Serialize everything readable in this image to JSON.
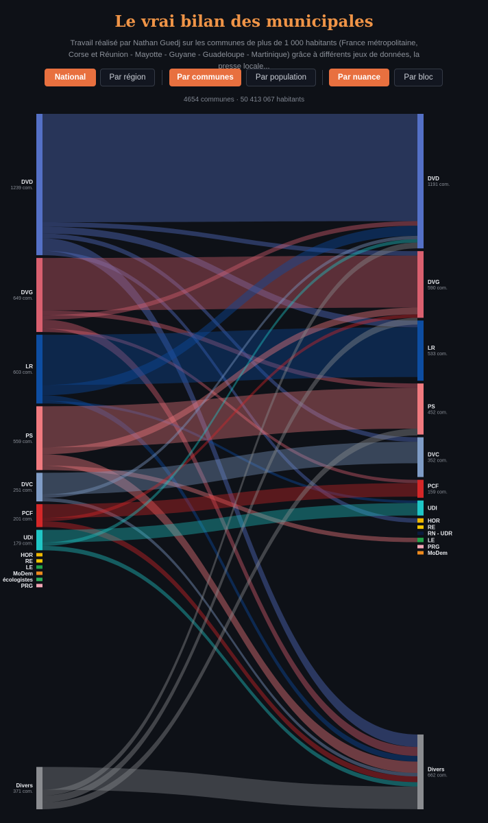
{
  "header": {
    "title": "Le vrai bilan des municipales",
    "subtitle": "Travail réalisé par Nathan Guedj sur les communes de plus de 1 000 habitants (France métropolitaine, Corse et Réunion - Mayotte - Guyane - Guadeloupe - Martinique) grâce à différents jeux de données, la presse locale..."
  },
  "filters": {
    "national": "National",
    "par_region": "Par région",
    "par_communes": "Par communes",
    "par_population": "Par population",
    "par_nuance": "Par nuance",
    "par_bloc": "Par bloc",
    "active": [
      "National",
      "Par communes",
      "Par nuance"
    ]
  },
  "stats": "4654 communes · 50 413 067 habitants",
  "chart_data": {
    "type": "sankey",
    "unit": "com.",
    "colors": {
      "DVD": "#5470c6",
      "DVG": "#d9606f",
      "LR": "#0d4da1",
      "PS": "#f07a7f",
      "DVC": "#7f9cc6",
      "PCF": "#d42728",
      "UDI": "#1fc6c6",
      "HOR": "#f0b800",
      "RE": "#f5c400",
      "LE": "#22a34a",
      "MoDem": "#ee8a1e",
      "écologistes": "#2fb05a",
      "PRG": "#f2a6b5",
      "RN - UDR": "#0a1b3d",
      "Divers": "#8a8c90"
    },
    "left_nodes": [
      {
        "name": "DVD",
        "count": 1239
      },
      {
        "name": "DVG",
        "count": 649
      },
      {
        "name": "LR",
        "count": 603
      },
      {
        "name": "PS",
        "count": 559
      },
      {
        "name": "DVC",
        "count": 251
      },
      {
        "name": "PCF",
        "count": 201
      },
      {
        "name": "UDI",
        "count": 179
      },
      {
        "name": "HOR",
        "count": null
      },
      {
        "name": "RE",
        "count": null
      },
      {
        "name": "LE",
        "count": null
      },
      {
        "name": "MoDem",
        "count": null
      },
      {
        "name": "écologistes",
        "count": null
      },
      {
        "name": "PRG",
        "count": null
      },
      {
        "name": "Divers",
        "count": 371
      }
    ],
    "right_nodes": [
      {
        "name": "DVD",
        "count": 1191
      },
      {
        "name": "DVG",
        "count": 590
      },
      {
        "name": "LR",
        "count": 533
      },
      {
        "name": "PS",
        "count": 452
      },
      {
        "name": "DVC",
        "count": 352
      },
      {
        "name": "PCF",
        "count": 159
      },
      {
        "name": "UDI",
        "count": null
      },
      {
        "name": "HOR",
        "count": null
      },
      {
        "name": "RE",
        "count": null
      },
      {
        "name": "RN - UDR",
        "count": null
      },
      {
        "name": "LE",
        "count": null
      },
      {
        "name": "PRG",
        "count": null
      },
      {
        "name": "MoDem",
        "count": null
      },
      {
        "name": "Divers",
        "count": 662
      }
    ],
    "flows": [
      {
        "from": "DVD",
        "to": "DVD",
        "value": 950
      },
      {
        "from": "DVD",
        "to": "DVG",
        "value": 40
      },
      {
        "from": "DVD",
        "to": "LR",
        "value": 60
      },
      {
        "from": "DVD",
        "to": "DVC",
        "value": 40
      },
      {
        "from": "DVD",
        "to": "Divers",
        "value": 110
      },
      {
        "from": "DVD",
        "to": "HOR",
        "value": 39
      },
      {
        "from": "DVG",
        "to": "DVG",
        "value": 460
      },
      {
        "from": "DVG",
        "to": "PS",
        "value": 40
      },
      {
        "from": "DVG",
        "to": "DVD",
        "value": 40
      },
      {
        "from": "DVG",
        "to": "Divers",
        "value": 80
      },
      {
        "from": "DVG",
        "to": "PCF",
        "value": 29
      },
      {
        "from": "LR",
        "to": "LR",
        "value": 440
      },
      {
        "from": "LR",
        "to": "DVD",
        "value": 90
      },
      {
        "from": "LR",
        "to": "Divers",
        "value": 50
      },
      {
        "from": "LR",
        "to": "UDI",
        "value": 23
      },
      {
        "from": "PS",
        "to": "PS",
        "value": 360
      },
      {
        "from": "PS",
        "to": "DVG",
        "value": 60
      },
      {
        "from": "PS",
        "to": "Divers",
        "value": 100
      },
      {
        "from": "PS",
        "to": "LE",
        "value": 39
      },
      {
        "from": "DVC",
        "to": "DVC",
        "value": 190
      },
      {
        "from": "DVC",
        "to": "DVD",
        "value": 30
      },
      {
        "from": "DVC",
        "to": "Divers",
        "value": 31
      },
      {
        "from": "PCF",
        "to": "PCF",
        "value": 120
      },
      {
        "from": "PCF",
        "to": "DVG",
        "value": 30
      },
      {
        "from": "PCF",
        "to": "Divers",
        "value": 51
      },
      {
        "from": "UDI",
        "to": "UDI",
        "value": 110
      },
      {
        "from": "UDI",
        "to": "DVD",
        "value": 30
      },
      {
        "from": "UDI",
        "to": "Divers",
        "value": 39
      },
      {
        "from": "Divers",
        "to": "Divers",
        "value": 200
      },
      {
        "from": "Divers",
        "to": "DVD",
        "value": 51
      },
      {
        "from": "Divers",
        "to": "DVG",
        "value": 60
      },
      {
        "from": "Divers",
        "to": "PS",
        "value": 60
      }
    ]
  }
}
